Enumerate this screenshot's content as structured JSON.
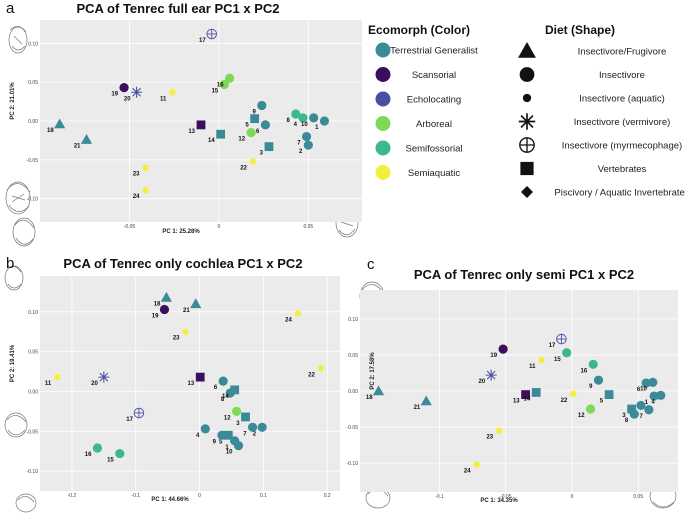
{
  "panel_letters": [
    "a",
    "b",
    "c"
  ],
  "colors": {
    "Terrestrial Generalist": "#3b8a98",
    "Scansorial": "#3c0f5e",
    "Echolocating": "#4b4fa3",
    "Arboreal": "#7ed957",
    "Semifossorial": "#3cb98a",
    "Semiaquatic": "#f2f03c",
    "panel_bg": "#ebebeb",
    "grid": "#ffffff"
  },
  "legend": {
    "ecomorph_title": "Ecomorph (Color)",
    "ecomorph_items": [
      "Terrestrial Generalist",
      "Scansorial",
      "Echolocating",
      "Arboreal",
      "Semifossorial",
      "Semiaquatic"
    ],
    "diet_title": "Diet (Shape)",
    "diet_items": [
      {
        "label": "Insectivore/Frugivore",
        "shape": "triangle"
      },
      {
        "label": "Insectivore",
        "shape": "circle"
      },
      {
        "label": "Insectivore (aquatic)",
        "shape": "smallcircle"
      },
      {
        "label": "Insectivore (vermivore)",
        "shape": "asterisk"
      },
      {
        "label": "Insectivore (myrmecophage)",
        "shape": "circleplus"
      },
      {
        "label": "Vertebrates",
        "shape": "square"
      },
      {
        "label": "Piscivory / Aquatic Invertebrates",
        "shape": "diamond"
      }
    ]
  },
  "chart_data": [
    {
      "type": "scatter",
      "title": "PCA of Tenrec full ear PC1 x PC2",
      "xlabel": "PC 1: 25.28%",
      "ylabel": "PC 2: 21.01%",
      "xlim": [
        -0.1,
        0.08
      ],
      "ylim": [
        -0.13,
        0.13
      ],
      "xticks": [
        -0.05,
        0.0,
        0.05
      ],
      "yticks": [
        -0.1,
        -0.05,
        0.0,
        0.05,
        0.1
      ],
      "points": [
        {
          "id": "1",
          "x": 0.059,
          "y": 0.0,
          "eco": "Terrestrial Generalist",
          "diet": "circle"
        },
        {
          "id": "2",
          "x": 0.05,
          "y": -0.031,
          "eco": "Terrestrial Generalist",
          "diet": "circle"
        },
        {
          "id": "3",
          "x": 0.028,
          "y": -0.033,
          "eco": "Terrestrial Generalist",
          "diet": "square"
        },
        {
          "id": "4",
          "x": 0.047,
          "y": 0.004,
          "eco": "Semifossorial",
          "diet": "circle"
        },
        {
          "id": "5",
          "x": 0.02,
          "y": 0.003,
          "eco": "Terrestrial Generalist",
          "diet": "square"
        },
        {
          "id": "6",
          "x": 0.026,
          "y": -0.005,
          "eco": "Terrestrial Generalist",
          "diet": "circle"
        },
        {
          "id": "7",
          "x": 0.049,
          "y": -0.02,
          "eco": "Terrestrial Generalist",
          "diet": "circle"
        },
        {
          "id": "8",
          "x": 0.043,
          "y": 0.009,
          "eco": "Semifossorial",
          "diet": "circle"
        },
        {
          "id": "9",
          "x": 0.024,
          "y": 0.02,
          "eco": "Terrestrial Generalist",
          "diet": "circle"
        },
        {
          "id": "10",
          "x": 0.053,
          "y": 0.004,
          "eco": "Terrestrial Generalist",
          "diet": "circle"
        },
        {
          "id": "11",
          "x": -0.026,
          "y": 0.037,
          "eco": "Semiaquatic",
          "diet": "smallcircle"
        },
        {
          "id": "12",
          "x": 0.018,
          "y": -0.015,
          "eco": "Arboreal",
          "diet": "circle"
        },
        {
          "id": "13",
          "x": -0.01,
          "y": -0.005,
          "eco": "Scansorial",
          "diet": "square"
        },
        {
          "id": "14",
          "x": 0.001,
          "y": -0.017,
          "eco": "Terrestrial Generalist",
          "diet": "square"
        },
        {
          "id": "15",
          "x": 0.003,
          "y": 0.047,
          "eco": "Arboreal",
          "diet": "circle"
        },
        {
          "id": "16",
          "x": 0.006,
          "y": 0.055,
          "eco": "Arboreal",
          "diet": "circle"
        },
        {
          "id": "17",
          "x": -0.004,
          "y": 0.112,
          "eco": "Echolocating",
          "diet": "circleplus"
        },
        {
          "id": "18",
          "x": -0.089,
          "y": -0.004,
          "eco": "Terrestrial Generalist",
          "diet": "triangle"
        },
        {
          "id": "19",
          "x": -0.053,
          "y": 0.043,
          "eco": "Scansorial",
          "diet": "circle"
        },
        {
          "id": "20",
          "x": -0.046,
          "y": 0.037,
          "eco": "Echolocating",
          "diet": "asterisk"
        },
        {
          "id": "21",
          "x": -0.074,
          "y": -0.024,
          "eco": "Terrestrial Generalist",
          "diet": "triangle"
        },
        {
          "id": "22",
          "x": 0.019,
          "y": -0.052,
          "eco": "Semiaquatic",
          "diet": "smallcircle"
        },
        {
          "id": "23",
          "x": -0.041,
          "y": -0.06,
          "eco": "Semiaquatic",
          "diet": "smallcircle"
        },
        {
          "id": "24",
          "x": -0.041,
          "y": -0.089,
          "eco": "Semiaquatic",
          "diet": "smallcircle"
        }
      ]
    },
    {
      "type": "scatter",
      "title": "PCA of Tenrec only cochlea PC1 x PC2",
      "xlabel": "PC 1: 44.66%",
      "ylabel": "PC 2: 19.41%",
      "xlim": [
        -0.25,
        0.22
      ],
      "ylim": [
        -0.125,
        0.145
      ],
      "xticks": [
        -0.2,
        -0.1,
        0.0,
        0.1,
        0.2
      ],
      "yticks": [
        -0.1,
        -0.05,
        0.0,
        0.05,
        0.1
      ],
      "points": [
        {
          "id": "1",
          "x": 0.055,
          "y": -0.062,
          "eco": "Terrestrial Generalist",
          "diet": "circle"
        },
        {
          "id": "2",
          "x": 0.098,
          "y": -0.045,
          "eco": "Terrestrial Generalist",
          "diet": "circle"
        },
        {
          "id": "3",
          "x": 0.072,
          "y": -0.032,
          "eco": "Terrestrial Generalist",
          "diet": "square"
        },
        {
          "id": "4",
          "x": 0.009,
          "y": -0.047,
          "eco": "Terrestrial Generalist",
          "diet": "circle"
        },
        {
          "id": "5",
          "x": 0.045,
          "y": -0.055,
          "eco": "Terrestrial Generalist",
          "diet": "square"
        },
        {
          "id": "6",
          "x": 0.037,
          "y": 0.013,
          "eco": "Terrestrial Generalist",
          "diet": "circle"
        },
        {
          "id": "7",
          "x": 0.083,
          "y": -0.045,
          "eco": "Terrestrial Generalist",
          "diet": "circle"
        },
        {
          "id": "8",
          "x": 0.048,
          "y": -0.002,
          "eco": "Terrestrial Generalist",
          "diet": "circle"
        },
        {
          "id": "9",
          "x": 0.035,
          "y": -0.055,
          "eco": "Terrestrial Generalist",
          "diet": "circle"
        },
        {
          "id": "10",
          "x": 0.061,
          "y": -0.068,
          "eco": "Terrestrial Generalist",
          "diet": "circle"
        },
        {
          "id": "11",
          "x": -0.223,
          "y": 0.018,
          "eco": "Semiaquatic",
          "diet": "smallcircle"
        },
        {
          "id": "12",
          "x": 0.058,
          "y": -0.025,
          "eco": "Arboreal",
          "diet": "circle"
        },
        {
          "id": "13",
          "x": 0.001,
          "y": 0.018,
          "eco": "Scansorial",
          "diet": "square"
        },
        {
          "id": "14",
          "x": 0.055,
          "y": 0.002,
          "eco": "Terrestrial Generalist",
          "diet": "square"
        },
        {
          "id": "15",
          "x": -0.125,
          "y": -0.078,
          "eco": "Semifossorial",
          "diet": "circle"
        },
        {
          "id": "16",
          "x": -0.16,
          "y": -0.071,
          "eco": "Semifossorial",
          "diet": "circle"
        },
        {
          "id": "17",
          "x": -0.095,
          "y": -0.027,
          "eco": "Echolocating",
          "diet": "circleplus"
        },
        {
          "id": "18",
          "x": -0.052,
          "y": 0.118,
          "eco": "Terrestrial Generalist",
          "diet": "triangle"
        },
        {
          "id": "19",
          "x": -0.055,
          "y": 0.103,
          "eco": "Scansorial",
          "diet": "circle"
        },
        {
          "id": "20",
          "x": -0.15,
          "y": 0.018,
          "eco": "Echolocating",
          "diet": "asterisk"
        },
        {
          "id": "21",
          "x": -0.006,
          "y": 0.11,
          "eco": "Terrestrial Generalist",
          "diet": "triangle"
        },
        {
          "id": "22",
          "x": 0.19,
          "y": 0.029,
          "eco": "Semiaquatic",
          "diet": "smallcircle"
        },
        {
          "id": "23",
          "x": -0.022,
          "y": 0.075,
          "eco": "Semiaquatic",
          "diet": "smallcircle"
        },
        {
          "id": "24",
          "x": 0.154,
          "y": 0.098,
          "eco": "Semiaquatic",
          "diet": "smallcircle"
        }
      ]
    },
    {
      "type": "scatter",
      "title": "PCA of Tenrec only semi PC1 x PC2",
      "xlabel": "PC 1: 34.35%",
      "ylabel": "PC 2: 17.58%",
      "xlim": [
        -0.16,
        0.08
      ],
      "ylim": [
        -0.14,
        0.14
      ],
      "xticks": [
        -0.1,
        -0.05,
        0.0,
        0.05
      ],
      "yticks": [
        -0.1,
        -0.05,
        0.0,
        0.05,
        0.1
      ],
      "points": [
        {
          "id": "1",
          "x": 0.062,
          "y": -0.007,
          "eco": "Terrestrial Generalist",
          "diet": "circle"
        },
        {
          "id": "2",
          "x": 0.052,
          "y": -0.02,
          "eco": "Terrestrial Generalist",
          "diet": "circle"
        },
        {
          "id": "3",
          "x": 0.045,
          "y": -0.025,
          "eco": "Terrestrial Generalist",
          "diet": "square"
        },
        {
          "id": "4",
          "x": 0.067,
          "y": -0.006,
          "eco": "Terrestrial Generalist",
          "diet": "circle"
        },
        {
          "id": "5",
          "x": 0.028,
          "y": -0.005,
          "eco": "Terrestrial Generalist",
          "diet": "square"
        },
        {
          "id": "6",
          "x": 0.056,
          "y": 0.011,
          "eco": "Terrestrial Generalist",
          "diet": "circle"
        },
        {
          "id": "7",
          "x": 0.058,
          "y": -0.026,
          "eco": "Terrestrial Generalist",
          "diet": "circle"
        },
        {
          "id": "8",
          "x": 0.047,
          "y": -0.032,
          "eco": "Terrestrial Generalist",
          "diet": "circle"
        },
        {
          "id": "9",
          "x": 0.02,
          "y": 0.015,
          "eco": "Terrestrial Generalist",
          "diet": "circle"
        },
        {
          "id": "10",
          "x": 0.061,
          "y": 0.012,
          "eco": "Terrestrial Generalist",
          "diet": "circle"
        },
        {
          "id": "11",
          "x": -0.023,
          "y": 0.043,
          "eco": "Semiaquatic",
          "diet": "smallcircle"
        },
        {
          "id": "12",
          "x": 0.014,
          "y": -0.025,
          "eco": "Arboreal",
          "diet": "circle"
        },
        {
          "id": "13",
          "x": -0.035,
          "y": -0.005,
          "eco": "Scansorial",
          "diet": "square"
        },
        {
          "id": "14",
          "x": -0.027,
          "y": -0.002,
          "eco": "Terrestrial Generalist",
          "diet": "square"
        },
        {
          "id": "15",
          "x": -0.004,
          "y": 0.053,
          "eco": "Semifossorial",
          "diet": "circle"
        },
        {
          "id": "16",
          "x": 0.016,
          "y": 0.037,
          "eco": "Semifossorial",
          "diet": "circle"
        },
        {
          "id": "17",
          "x": -0.008,
          "y": 0.072,
          "eco": "Echolocating",
          "diet": "circleplus"
        },
        {
          "id": "18",
          "x": -0.146,
          "y": 0.0,
          "eco": "Terrestrial Generalist",
          "diet": "triangle"
        },
        {
          "id": "19",
          "x": -0.052,
          "y": 0.058,
          "eco": "Scansorial",
          "diet": "circle"
        },
        {
          "id": "20",
          "x": -0.061,
          "y": 0.022,
          "eco": "Echolocating",
          "diet": "asterisk"
        },
        {
          "id": "21",
          "x": -0.11,
          "y": -0.014,
          "eco": "Terrestrial Generalist",
          "diet": "triangle"
        },
        {
          "id": "22",
          "x": 0.001,
          "y": -0.004,
          "eco": "Semiaquatic",
          "diet": "smallcircle"
        },
        {
          "id": "23",
          "x": -0.055,
          "y": -0.055,
          "eco": "Semiaquatic",
          "diet": "smallcircle"
        },
        {
          "id": "24",
          "x": -0.072,
          "y": -0.102,
          "eco": "Semiaquatic",
          "diet": "smallcircle"
        }
      ]
    }
  ]
}
